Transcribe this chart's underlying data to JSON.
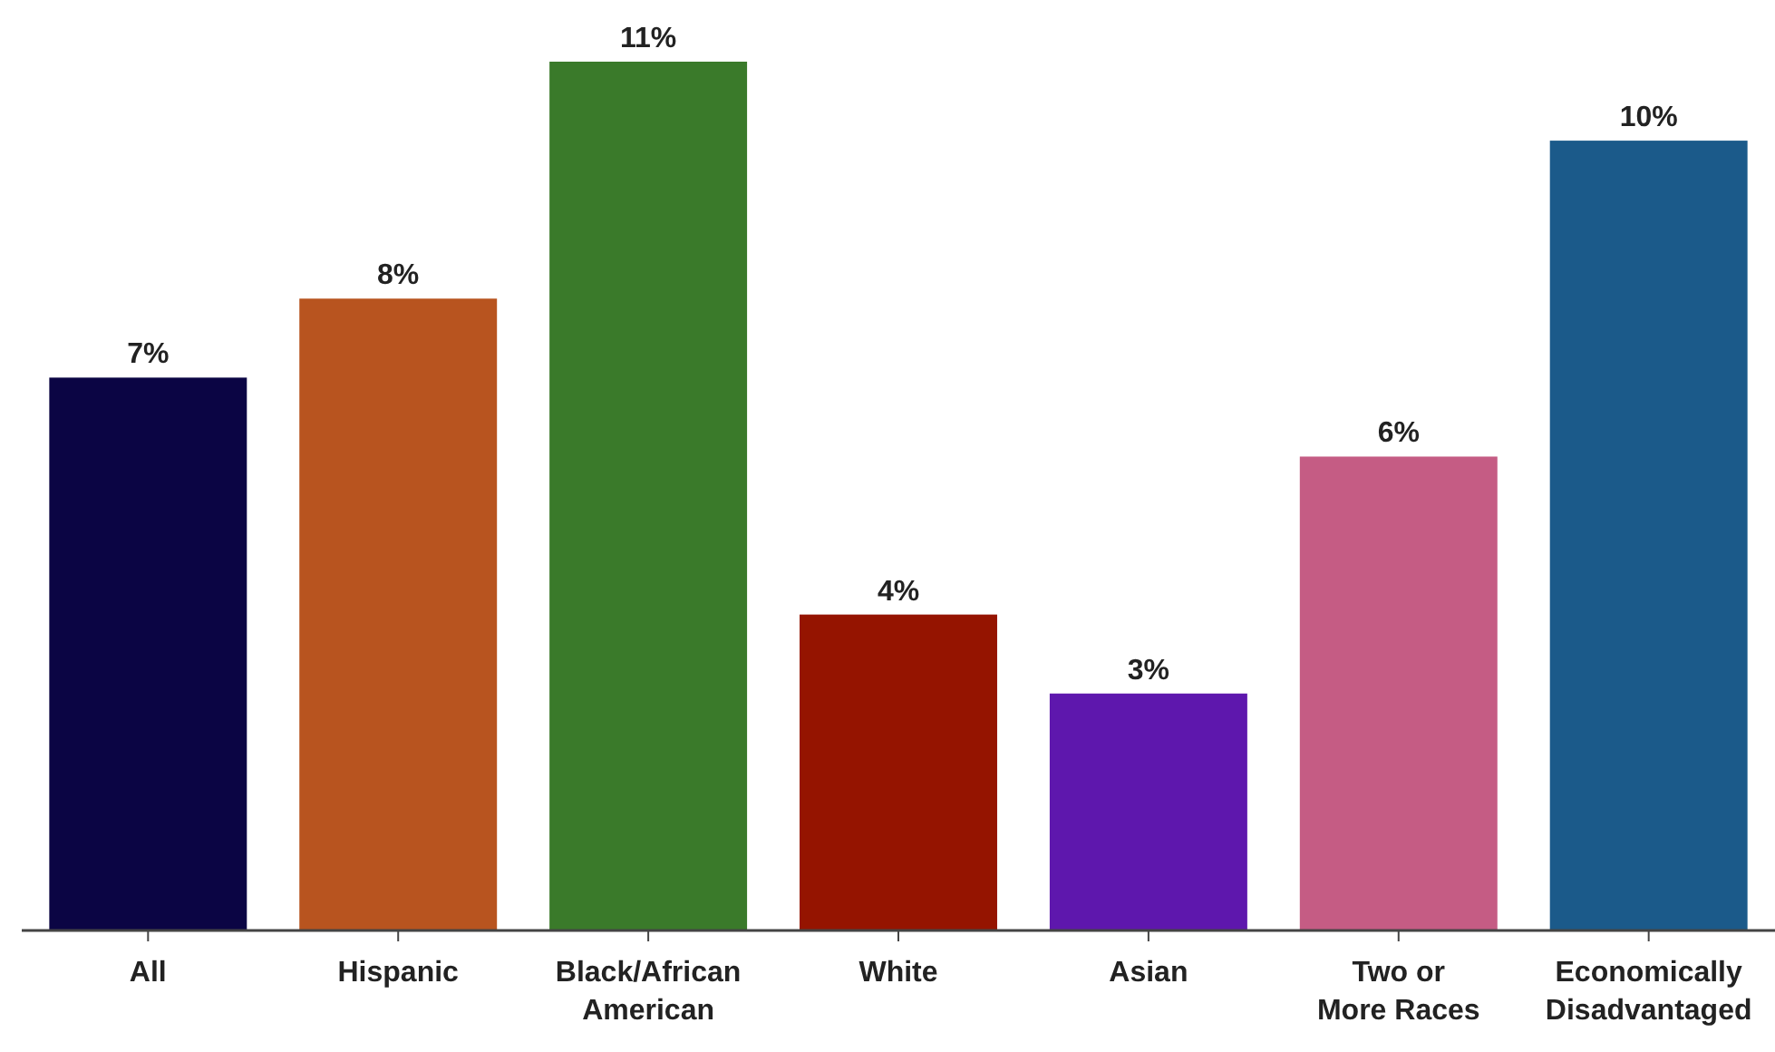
{
  "chart_data": {
    "type": "bar",
    "categories": [
      "All",
      "Hispanic",
      "Black/African American",
      "White",
      "Asian",
      "Two or More Races",
      "Economically Disadvantaged"
    ],
    "values": [
      7,
      8,
      11,
      4,
      3,
      6,
      10
    ],
    "colors": [
      "#0b0544",
      "#b8541f",
      "#3a7a2a",
      "#951400",
      "#5e17ad",
      "#c55c84",
      "#1b5a8a"
    ],
    "value_labels": [
      "7%",
      "8%",
      "11%",
      "4%",
      "3%",
      "6%",
      "10%"
    ]
  }
}
